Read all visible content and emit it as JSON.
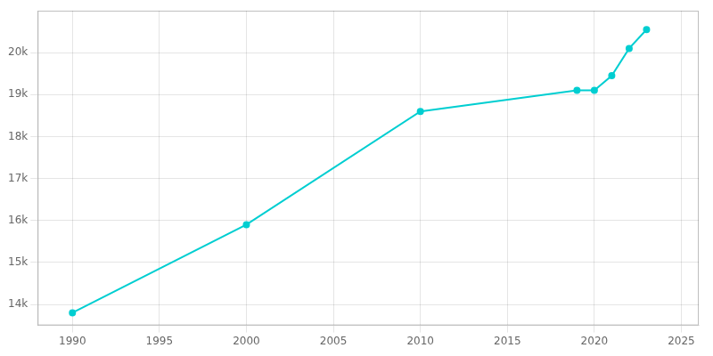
{
  "chart_data": {
    "type": "line",
    "x": [
      1990,
      2000,
      2010,
      2019,
      2020,
      2021,
      2022,
      2023
    ],
    "values": [
      13800,
      15900,
      18600,
      19100,
      19100,
      19450,
      20100,
      20550
    ],
    "color": "#00CED1",
    "marker": "circle",
    "xlim": [
      1988,
      2026
    ],
    "xticks": [
      1990,
      1995,
      2000,
      2005,
      2010,
      2015,
      2020,
      2025
    ],
    "ylim": [
      13500,
      21000
    ],
    "yticks": [
      {
        "value": 14000,
        "label": "14k"
      },
      {
        "value": 15000,
        "label": "15k"
      },
      {
        "value": 16000,
        "label": "16k"
      },
      {
        "value": 17000,
        "label": "17k"
      },
      {
        "value": 18000,
        "label": "18k"
      },
      {
        "value": 19000,
        "label": "19k"
      },
      {
        "value": 20000,
        "label": "20k"
      }
    ],
    "grid": true
  }
}
